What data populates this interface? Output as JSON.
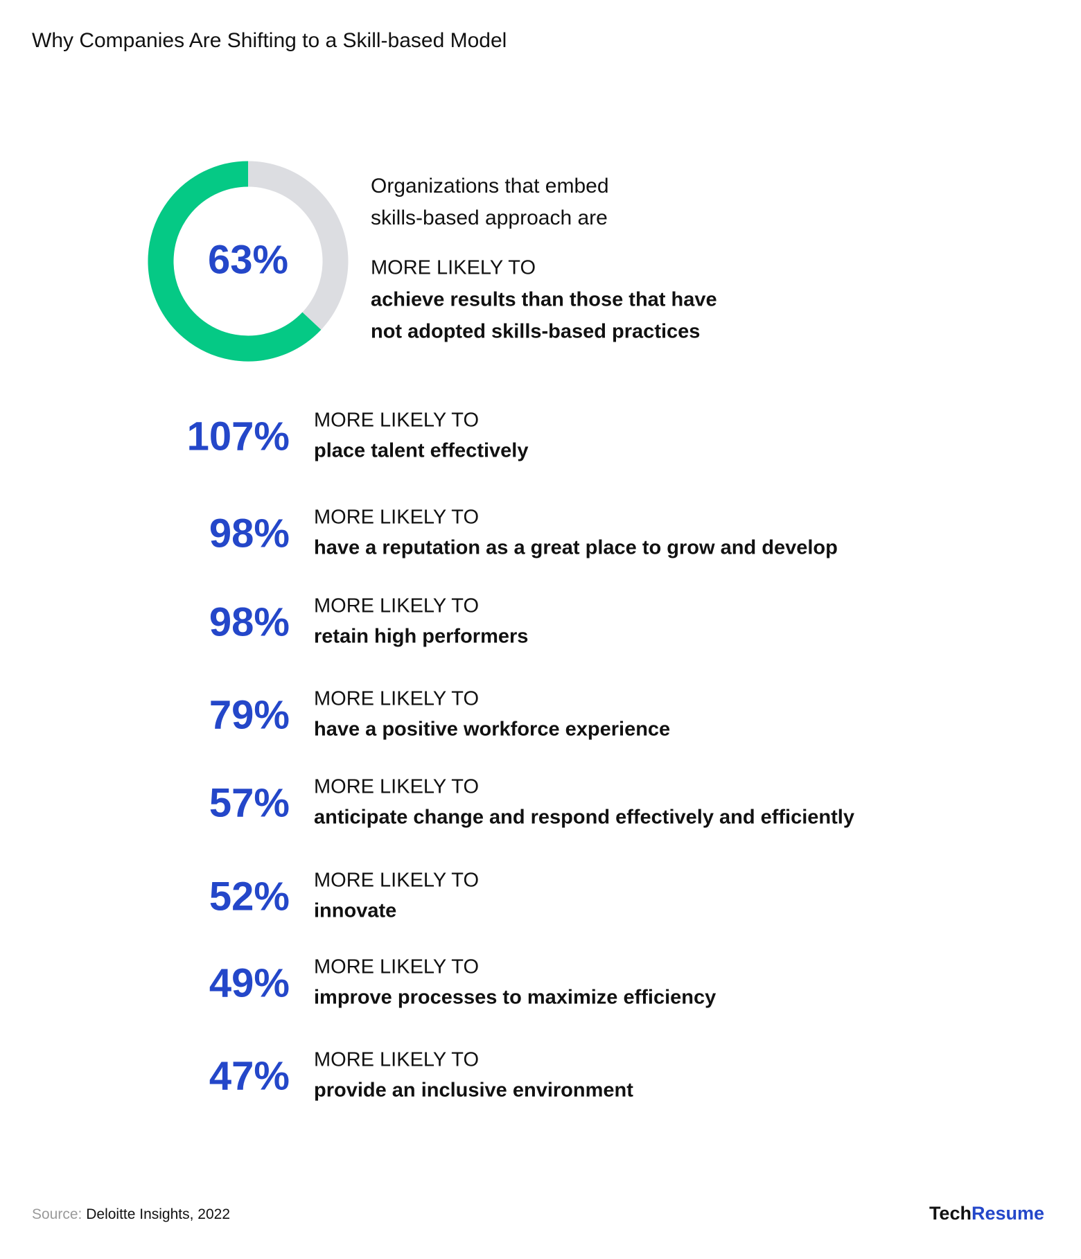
{
  "title": "Why Companies Are Shifting to a Skill-based Model",
  "donut": {
    "type": "donut",
    "value": 63,
    "label": "63%",
    "max": 100,
    "color": "#05c985",
    "track_color": "#dcdde1",
    "intro": [
      "Organizations that embed",
      "skills-based approach are"
    ],
    "lead": "MORE LIKELY TO",
    "text": [
      "achieve results than those that have",
      "not adopted skills-based practices"
    ]
  },
  "items": [
    {
      "figure": "107%",
      "lead": "MORE LIKELY TO",
      "text": "place talent effectively"
    },
    {
      "figure": "98%",
      "lead": "MORE LIKELY TO",
      "text": "have a reputation as a great place to grow and develop"
    },
    {
      "figure": "98%",
      "lead": "MORE LIKELY TO",
      "text": "retain high performers"
    },
    {
      "figure": "79%",
      "lead": "MORE LIKELY TO",
      "text": "have a positive workforce experience"
    },
    {
      "figure": "57%",
      "lead": "MORE LIKELY TO",
      "text": "anticipate change and respond effectively and efficiently"
    },
    {
      "figure": "52%",
      "lead": "MORE LIKELY TO",
      "text": "innovate"
    },
    {
      "figure": "49%",
      "lead": "MORE LIKELY TO",
      "text": "improve processes to maximize efficiency"
    },
    {
      "figure": "47%",
      "lead": "MORE LIKELY TO",
      "text": "provide an inclusive environment"
    }
  ],
  "source": {
    "prefix": "Source:",
    "text": "Deloitte Insights, 2022"
  },
  "brand": {
    "part1": "Tech",
    "part2": "Resume"
  }
}
